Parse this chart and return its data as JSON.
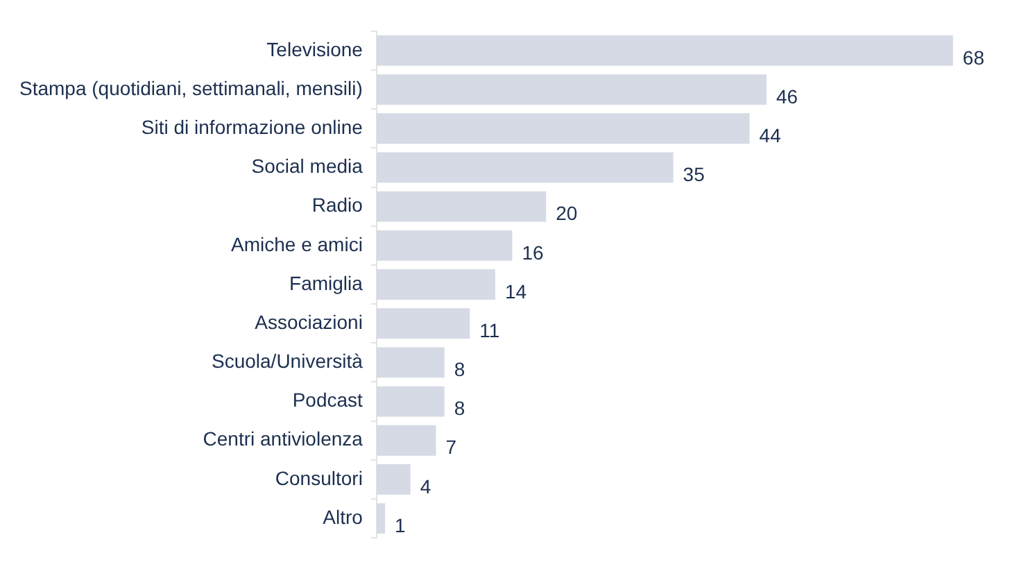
{
  "chart_data": {
    "type": "bar",
    "orientation": "horizontal",
    "categories": [
      "Televisione",
      "Stampa (quotidiani, settimanali, mensili)",
      "Siti di informazione online",
      "Social media",
      "Radio",
      "Amiche e amici",
      "Famiglia",
      "Associazioni",
      "Scuola/Università",
      "Podcast",
      "Centri antiviolenza",
      "Consultori",
      "Altro"
    ],
    "values": [
      68,
      46,
      44,
      35,
      20,
      16,
      14,
      11,
      8,
      8,
      7,
      4,
      1
    ],
    "color": "#d5dae4",
    "data_labels": true,
    "grid": false,
    "legend": false
  }
}
